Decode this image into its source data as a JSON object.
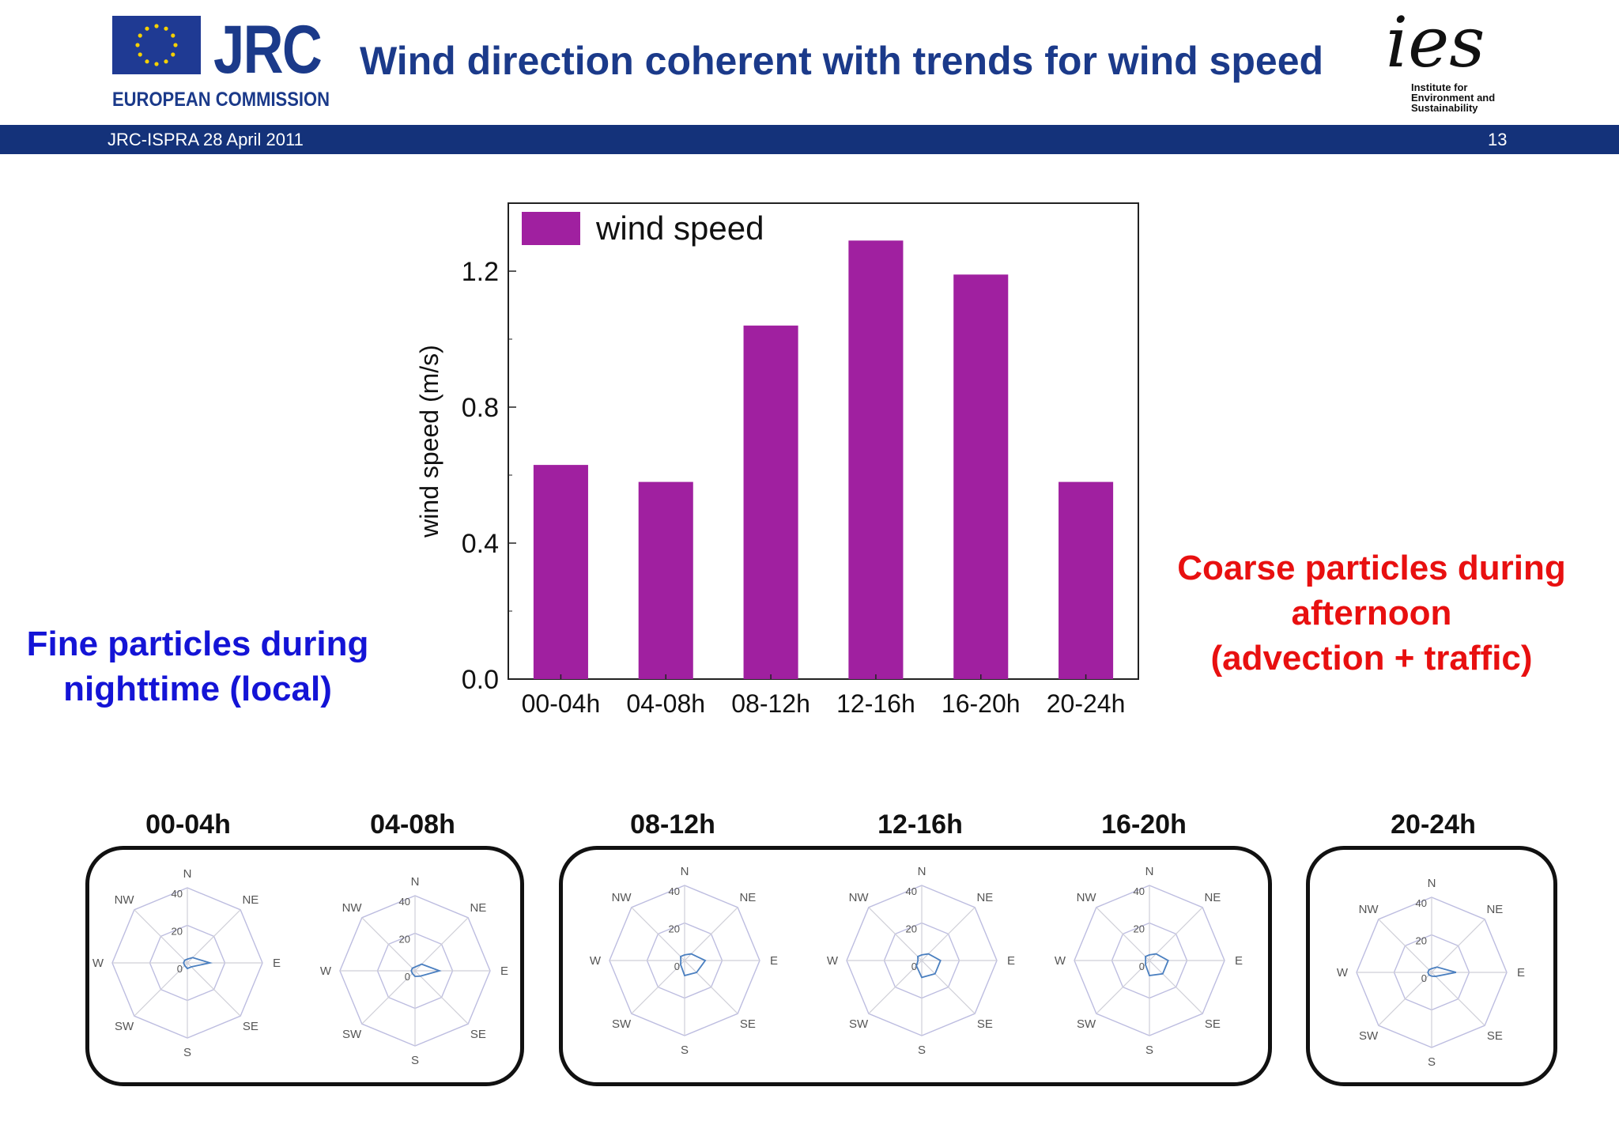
{
  "header": {
    "jrc_label": "JRC",
    "commission_label": "EUROPEAN COMMISSION",
    "title": "Wind direction coherent with trends for wind speed",
    "ies_logo_text": "ies",
    "ies_caption_lines": [
      "Institute for",
      "Environment and",
      "Sustainability"
    ],
    "footer_date": "JRC-ISPRA 28 April 2011",
    "page_number": "13",
    "colors": {
      "bar": "#14327a",
      "title": "#1b3a8a",
      "flag": "#1f3a93",
      "star": "#f4d000"
    }
  },
  "chart_data": [
    {
      "type": "bar",
      "categories": [
        "00-04h",
        "04-08h",
        "08-12h",
        "12-16h",
        "16-20h",
        "20-24h"
      ],
      "series": [
        {
          "name": "wind speed",
          "values": [
            0.63,
            0.58,
            1.04,
            1.29,
            1.19,
            0.58
          ]
        }
      ],
      "ylabel": "wind speed (m/s)",
      "xlabel": "",
      "ylim": [
        0,
        1.4
      ],
      "yticks": [
        "0.0",
        "0.4",
        "0.8",
        "1.2"
      ],
      "color": "#a020a0",
      "legend": "top-left",
      "grid": false
    },
    {
      "type": "radar",
      "directions": [
        "N",
        "NE",
        "E",
        "SE",
        "S",
        "SW",
        "W",
        "NW"
      ],
      "ring_labels": [
        "0",
        "20",
        "40"
      ],
      "rmax": 40,
      "panels": [
        {
          "title": "00-04h",
          "values": [
            2,
            4,
            12,
            3,
            3,
            2,
            2,
            2
          ]
        },
        {
          "title": "04-08h",
          "values": [
            2,
            5,
            13,
            4,
            3,
            2,
            2,
            2
          ]
        },
        {
          "title": "08-12h",
          "values": [
            3,
            5,
            11,
            9,
            8,
            3,
            2,
            3
          ]
        },
        {
          "title": "12-16h",
          "values": [
            3,
            5,
            10,
            10,
            9,
            4,
            2,
            3
          ]
        },
        {
          "title": "16-20h",
          "values": [
            3,
            5,
            10,
            10,
            8,
            3,
            2,
            3
          ]
        },
        {
          "title": "20-24h",
          "values": [
            2,
            4,
            13,
            3,
            2,
            2,
            2,
            2
          ]
        }
      ],
      "grid_color": "#bdbde0",
      "data_color": "#4a7fc0"
    }
  ],
  "notes": {
    "fine_lines": [
      "Fine particles during",
      "nighttime (local)"
    ],
    "coarse_lines": [
      "Coarse particles during",
      "afternoon",
      "(advection + traffic)"
    ]
  }
}
